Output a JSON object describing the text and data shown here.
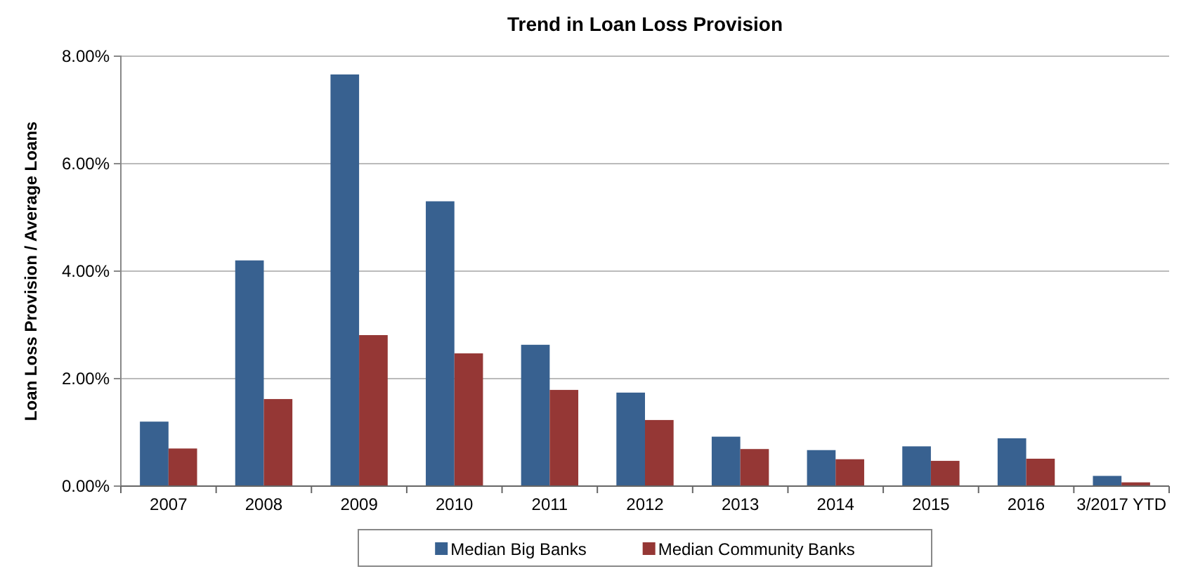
{
  "chart_data": {
    "type": "bar",
    "title": "Trend in Loan Loss Provision",
    "ylabel": "Loan Loss Provision / Average Loans",
    "categories": [
      "2007",
      "2008",
      "2009",
      "2010",
      "2011",
      "2012",
      "2013",
      "2014",
      "2015",
      "2016",
      "3/2017 YTD"
    ],
    "series": [
      {
        "name": "Median Big Banks",
        "color": "#386190",
        "values": [
          1.2,
          4.2,
          7.66,
          5.3,
          2.63,
          1.74,
          0.92,
          0.67,
          0.74,
          0.89,
          0.19
        ]
      },
      {
        "name": "Median Community Banks",
        "color": "#953735",
        "values": [
          0.7,
          1.62,
          2.81,
          2.47,
          1.79,
          1.23,
          0.69,
          0.5,
          0.47,
          0.51,
          0.07
        ]
      }
    ],
    "ylim": [
      0,
      8
    ],
    "yticks": [
      {
        "value": 0,
        "label": "0.00%"
      },
      {
        "value": 2,
        "label": "2.00%"
      },
      {
        "value": 4,
        "label": "4.00%"
      },
      {
        "value": 6,
        "label": "6.00%"
      },
      {
        "value": 8,
        "label": "8.00%"
      }
    ],
    "grid": "y",
    "legend": "bottom"
  }
}
